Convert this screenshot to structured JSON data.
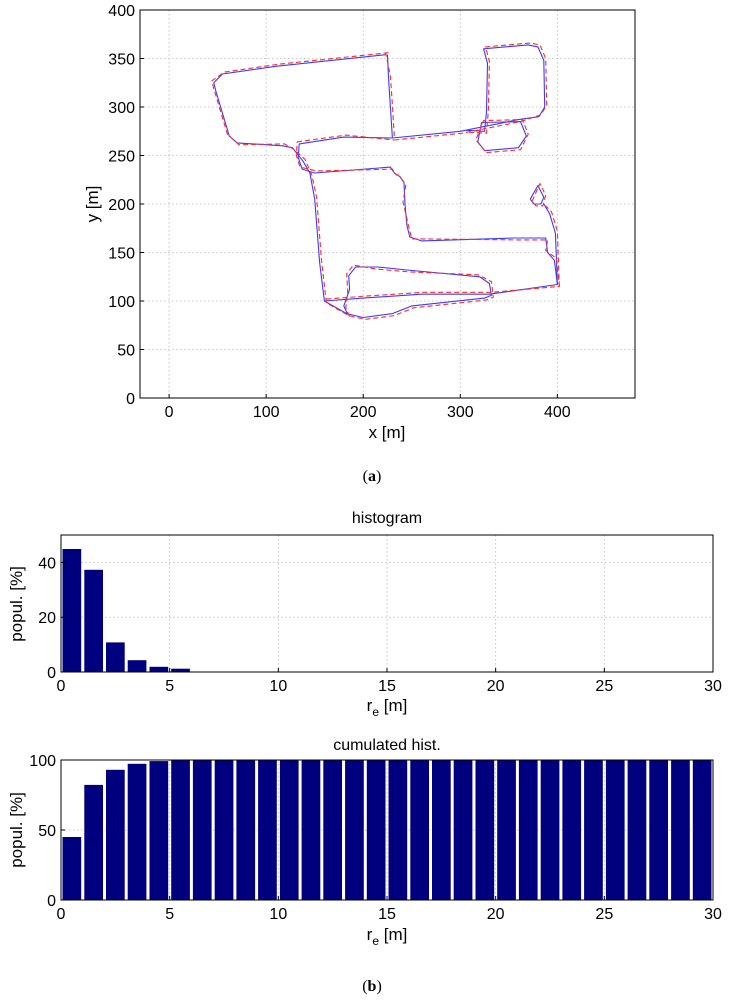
{
  "figure": {
    "panel_a_caption": "a",
    "panel_b_caption": "b",
    "colors": {
      "estimated": "#3b3bff",
      "reference": "#ff2a2a",
      "bars": "#00007f"
    }
  },
  "chart_data": [
    {
      "type": "line",
      "title": "",
      "xlabel": "x [m]",
      "ylabel": "y [m]",
      "xlim": [
        -30,
        480
      ],
      "ylim": [
        0,
        400
      ],
      "xticks": [
        0,
        100,
        200,
        300,
        400
      ],
      "yticks": [
        0,
        50,
        100,
        150,
        200,
        250,
        300,
        350,
        400
      ],
      "grid": true,
      "series": [
        {
          "style": "solid",
          "color": "#3b3bff",
          "paths": [
            [
              [
                224,
                354
              ],
              [
                110,
                342
              ],
              [
                55,
                334
              ],
              [
                46,
                325
              ],
              [
                48,
                317
              ],
              [
                62,
                270
              ],
              [
                70,
                263
              ],
              [
                117,
                260
              ],
              [
                127,
                258
              ],
              [
                138,
                244
              ],
              [
                145,
                232
              ],
              [
                150,
                205
              ],
              [
                155,
                140
              ],
              [
                160,
                100
              ],
              [
                183,
                87
              ],
              [
                200,
                83
              ],
              [
                230,
                87
              ],
              [
                250,
                95
              ],
              [
                325,
                103
              ],
              [
                332,
                106
              ],
              [
                330,
                118
              ],
              [
                320,
                125
              ],
              [
                245,
                132
              ],
              [
                215,
                135
              ],
              [
                192,
                135
              ],
              [
                185,
                126
              ],
              [
                186,
                112
              ],
              [
                180,
                95
              ],
              [
                184,
                86
              ]
            ],
            [
              [
                160,
                100
              ],
              [
                200,
                103
              ],
              [
                260,
                107
              ],
              [
                330,
                107
              ],
              [
                400,
                117
              ],
              [
                397,
                142
              ],
              [
                390,
                150
              ],
              [
                388,
                165
              ],
              [
                355,
                165
              ],
              [
                260,
                162
              ],
              [
                248,
                166
              ],
              [
                245,
                178
              ],
              [
                243,
                200
              ],
              [
                242,
                222
              ],
              [
                238,
                228
              ],
              [
                232,
                232
              ],
              [
                228,
                238
              ],
              [
                150,
                232
              ],
              [
                137,
                236
              ],
              [
                133,
                248
              ],
              [
                134,
                262
              ]
            ],
            [
              [
                230,
                268
              ],
              [
                228,
                300
              ],
              [
                226,
                330
              ],
              [
                225,
                354
              ]
            ],
            [
              [
                230,
                268
              ],
              [
                300,
                275
              ],
              [
                360,
                287
              ],
              [
                381,
                290
              ],
              [
                387,
                300
              ],
              [
                386,
                348
              ],
              [
                380,
                362
              ],
              [
                370,
                364
              ],
              [
                324,
                360
              ],
              [
                328,
                345
              ],
              [
                327,
                295
              ],
              [
                325,
                275
              ],
              [
                306,
                276
              ]
            ],
            [
              [
                134,
                262
              ],
              [
                180,
                269
              ],
              [
                230,
                268
              ]
            ],
            [
              [
                325,
                255
              ],
              [
                360,
                258
              ],
              [
                368,
                270
              ],
              [
                362,
                285
              ],
              [
                322,
                284
              ],
              [
                318,
                264
              ],
              [
                325,
                255
              ]
            ],
            [
              [
                372,
                205
              ],
              [
                380,
                219
              ],
              [
                386,
                207
              ],
              [
                383,
                200
              ],
              [
                376,
                200
              ],
              [
                372,
                205
              ]
            ],
            [
              [
                400,
                117
              ],
              [
                398,
                170
              ],
              [
                392,
                190
              ],
              [
                386,
                200
              ]
            ]
          ]
        },
        {
          "style": "dashed",
          "color": "#ff2a2a",
          "paths": [
            [
              [
                226,
                356
              ],
              [
                112,
                344
              ],
              [
                57,
                336
              ],
              [
                44,
                327
              ],
              [
                46,
                319
              ],
              [
                60,
                272
              ],
              [
                72,
                261
              ],
              [
                119,
                262
              ],
              [
                129,
                256
              ],
              [
                140,
                246
              ],
              [
                147,
                230
              ],
              [
                152,
                207
              ],
              [
                157,
                142
              ],
              [
                162,
                98
              ],
              [
                185,
                85
              ],
              [
                202,
                81
              ],
              [
                232,
                85
              ],
              [
                252,
                93
              ],
              [
                327,
                101
              ],
              [
                334,
                104
              ],
              [
                332,
                120
              ],
              [
                318,
                127
              ],
              [
                247,
                130
              ],
              [
                213,
                133
              ],
              [
                190,
                137
              ],
              [
                183,
                128
              ],
              [
                184,
                110
              ],
              [
                182,
                93
              ],
              [
                186,
                84
              ]
            ],
            [
              [
                162,
                102
              ],
              [
                202,
                105
              ],
              [
                262,
                109
              ],
              [
                332,
                109
              ],
              [
                402,
                115
              ],
              [
                399,
                144
              ],
              [
                388,
                152
              ],
              [
                390,
                163
              ],
              [
                357,
                163
              ],
              [
                262,
                164
              ],
              [
                250,
                164
              ],
              [
                247,
                176
              ],
              [
                241,
                202
              ],
              [
                244,
                220
              ],
              [
                236,
                230
              ],
              [
                234,
                230
              ],
              [
                230,
                236
              ],
              [
                152,
                234
              ],
              [
                135,
                238
              ],
              [
                131,
                250
              ],
              [
                132,
                264
              ]
            ],
            [
              [
                232,
                270
              ],
              [
                230,
                302
              ],
              [
                228,
                332
              ],
              [
                223,
                356
              ]
            ],
            [
              [
                232,
                266
              ],
              [
                302,
                273
              ],
              [
                362,
                285
              ],
              [
                383,
                292
              ],
              [
                389,
                302
              ],
              [
                388,
                350
              ],
              [
                382,
                364
              ],
              [
                372,
                366
              ],
              [
                326,
                362
              ],
              [
                330,
                347
              ],
              [
                329,
                297
              ],
              [
                327,
                273
              ],
              [
                308,
                274
              ]
            ],
            [
              [
                132,
                264
              ],
              [
                182,
                271
              ],
              [
                232,
                266
              ]
            ],
            [
              [
                327,
                253
              ],
              [
                362,
                256
              ],
              [
                370,
                272
              ],
              [
                364,
                287
              ],
              [
                324,
                286
              ],
              [
                316,
                266
              ],
              [
                327,
                253
              ]
            ],
            [
              [
                374,
                203
              ],
              [
                382,
                221
              ],
              [
                388,
                209
              ],
              [
                385,
                198
              ],
              [
                378,
                198
              ],
              [
                374,
                203
              ]
            ],
            [
              [
                402,
                115
              ],
              [
                400,
                172
              ],
              [
                394,
                192
              ],
              [
                388,
                198
              ]
            ]
          ]
        }
      ]
    },
    {
      "type": "bar",
      "title": "histogram",
      "xlabel": "r",
      "xlabel_sub": "e",
      "xlabel_unit": " [m]",
      "ylabel": "popul. [%]",
      "xlim": [
        0,
        30
      ],
      "ylim": [
        0,
        50
      ],
      "xticks": [
        0,
        5,
        10,
        15,
        20,
        25,
        30
      ],
      "yticks": [
        0,
        20,
        40
      ],
      "bin_width": 1,
      "bin_centers": [
        0.5,
        1.5,
        2.5,
        3.5,
        4.5,
        5.5
      ],
      "values": [
        44.9,
        37.3,
        10.8,
        4.3,
        1.9,
        1.2
      ],
      "grid": true
    },
    {
      "type": "bar",
      "title": "cumulated hist.",
      "xlabel": "r",
      "xlabel_sub": "e",
      "xlabel_unit": " [m]",
      "ylabel": "popul. [%]",
      "xlim": [
        0,
        30
      ],
      "ylim": [
        0,
        100
      ],
      "xticks": [
        0,
        5,
        10,
        15,
        20,
        25,
        30
      ],
      "yticks": [
        0,
        50,
        100
      ],
      "bin_width": 1,
      "bin_centers": [
        0.5,
        1.5,
        2.5,
        3.5,
        4.5,
        5.5,
        6.5,
        7.5,
        8.5,
        9.5,
        10.5,
        11.5,
        12.5,
        13.5,
        14.5,
        15.5,
        16.5,
        17.5,
        18.5,
        19.5,
        20.5,
        21.5,
        22.5,
        23.5,
        24.5,
        25.5,
        26.5,
        27.5,
        28.5,
        29.5
      ],
      "values": [
        45,
        82.2,
        93,
        97.3,
        99.2,
        100,
        100,
        100,
        100,
        100,
        100,
        100,
        100,
        100,
        100,
        100,
        100,
        100,
        100,
        100,
        100,
        100,
        100,
        100,
        100,
        100,
        100,
        100,
        100,
        100
      ],
      "grid": true
    }
  ]
}
